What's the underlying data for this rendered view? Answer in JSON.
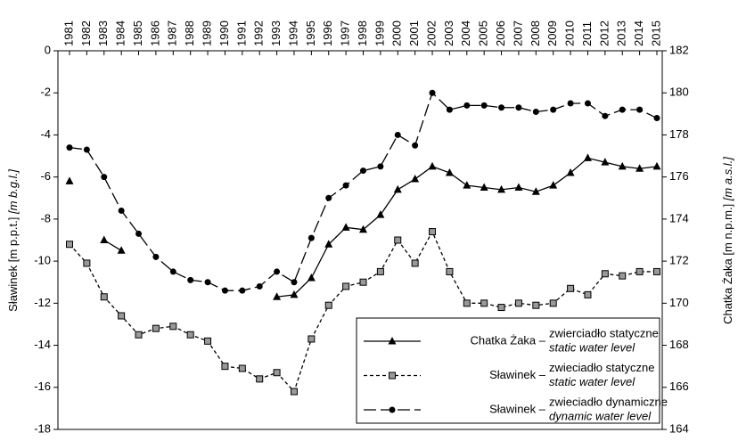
{
  "chart_data": {
    "type": "line",
    "y_label": "Sławinek [m p.p.t.]",
    "y_label_en": "[m b.g.l.]",
    "y2_label": "Chatka Żaka [m n.p.m.]",
    "y2_label_en": "[m a.s.l.]",
    "categories": [
      "1981",
      "1982",
      "1983",
      "1984",
      "1985",
      "1986",
      "1987",
      "1988",
      "1989",
      "1990",
      "1991",
      "1992",
      "1993",
      "1994",
      "1995",
      "1996",
      "1997",
      "1998",
      "1999",
      "2000",
      "2001",
      "2002",
      "2003",
      "2004",
      "2005",
      "2006",
      "2007",
      "2008",
      "2009",
      "2010",
      "2011",
      "2012",
      "2013",
      "2014",
      "2015"
    ],
    "ylim": [
      -18,
      0
    ],
    "yticks": [
      -18,
      -16,
      -14,
      -12,
      -10,
      -8,
      -6,
      -4,
      -2,
      0
    ],
    "y2lim": [
      164,
      182
    ],
    "y2ticks": [
      164,
      166,
      168,
      170,
      172,
      174,
      176,
      178,
      180,
      182
    ],
    "series": [
      {
        "name": "Chatka Żaka –",
        "label_pl": "zwierciadło statyczne",
        "label_en": "static water level",
        "color": "#000000",
        "axis": "y2",
        "marker": "triangle",
        "dash": "solid",
        "values": [
          175.8,
          null,
          173.0,
          172.5,
          null,
          null,
          null,
          null,
          null,
          null,
          null,
          null,
          170.3,
          170.4,
          171.2,
          172.8,
          173.6,
          173.5,
          174.2,
          175.4,
          175.9,
          176.5,
          176.2,
          175.6,
          175.5,
          175.4,
          175.5,
          175.3,
          175.6,
          176.2,
          176.9,
          176.7,
          176.5,
          176.4,
          176.5
        ]
      },
      {
        "name": "Sławinek –",
        "label_pl": "zwieciadło statyczne",
        "label_en": "static water level",
        "color": "#000000",
        "marker": "square",
        "dash": "short",
        "values": [
          -9.2,
          -10.1,
          -11.7,
          -12.6,
          -13.5,
          -13.2,
          -13.1,
          -13.5,
          -13.8,
          -15.0,
          -15.1,
          -15.6,
          -15.3,
          -16.2,
          -13.7,
          -12.1,
          -11.2,
          -11.0,
          -10.5,
          -9.0,
          -10.1,
          -8.6,
          -10.5,
          -12.0,
          -12.0,
          -12.2,
          -12.0,
          -12.1,
          -12.0,
          -11.3,
          -11.6,
          -10.6,
          -10.7,
          -10.5,
          -10.5
        ]
      },
      {
        "name": "Sławinek –",
        "label_pl": "zwieciadło dynamiczne",
        "label_en": "dynamic water level",
        "color": "#000000",
        "marker": "circle",
        "dash": "long",
        "values": [
          -4.6,
          -4.7,
          -6.0,
          -7.6,
          -8.7,
          -9.8,
          -10.5,
          -10.9,
          -11.0,
          -11.4,
          -11.4,
          -11.2,
          -10.5,
          -11.0,
          -8.9,
          -7.0,
          -6.4,
          -5.7,
          -5.5,
          -4.0,
          -4.5,
          -2.0,
          -2.8,
          -2.6,
          -2.6,
          -2.7,
          -2.7,
          -2.9,
          -2.8,
          -2.5,
          -2.5,
          -3.1,
          -2.8,
          -2.8,
          -3.2
        ]
      }
    ]
  }
}
